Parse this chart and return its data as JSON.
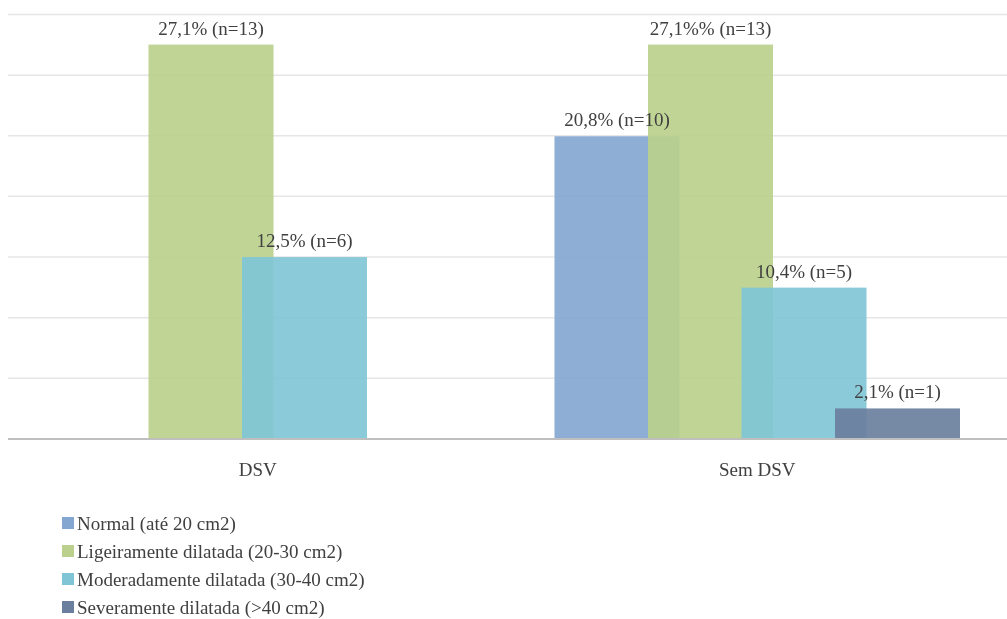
{
  "chart_data": {
    "type": "bar",
    "categories": [
      "DSV",
      "Sem DSV"
    ],
    "series": [
      {
        "name": "Normal (até 20 cm2)",
        "color": "#84a7d2",
        "values": [
          null,
          20.8
        ],
        "value_labels": [
          null,
          "20,8% (n=10)"
        ]
      },
      {
        "name": "Ligeiramente dilatada (20-30 cm2)",
        "color": "#bbd08c",
        "values": [
          27.1,
          27.1
        ],
        "value_labels": [
          "27,1% (n=13)",
          "27,1%% (n=13)"
        ]
      },
      {
        "name": "Moderadamente dilatada (30-40 cm2)",
        "color": "#80c5d6",
        "values": [
          12.5,
          10.4
        ],
        "value_labels": [
          "12,5% (n=6)",
          "10,4% (n=5)"
        ]
      },
      {
        "name": "Severamente dilatada (>40 cm2)",
        "color": "#6a7f9d",
        "values": [
          null,
          2.1
        ],
        "value_labels": [
          null,
          "2,1% (n=1)"
        ]
      }
    ],
    "ylim": [
      0,
      29.2
    ],
    "yticks": [
      {
        "value": 4.17,
        "label": null
      },
      {
        "value": 8.33,
        "label": null
      },
      {
        "value": 12.5,
        "label": null
      },
      {
        "value": 16.67,
        "label": null
      },
      {
        "value": 20.83,
        "label": null
      },
      {
        "value": 25,
        "label": null
      },
      {
        "value": 29.17,
        "label": null
      }
    ],
    "grid": "y",
    "legend": "bottom",
    "tick_labels": "x"
  }
}
